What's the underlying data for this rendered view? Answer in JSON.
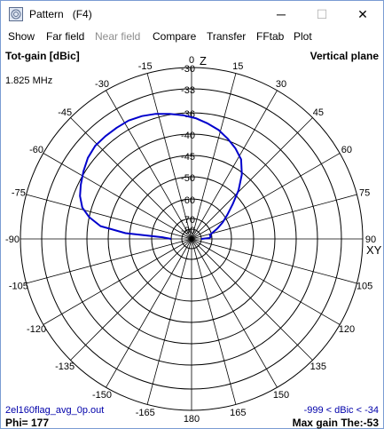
{
  "window": {
    "title": "Pattern   (F4)",
    "minimize_glyph": "─",
    "maximize_glyph": "☐",
    "close_glyph": "✕"
  },
  "menu": [
    {
      "label": "Show",
      "enabled": true
    },
    {
      "label": "Far field",
      "enabled": true
    },
    {
      "label": "Near field",
      "enabled": false
    },
    {
      "label": "Compare",
      "enabled": true
    },
    {
      "label": "Transfer",
      "enabled": true
    },
    {
      "label": "FFtab",
      "enabled": true
    },
    {
      "label": "Plot",
      "enabled": true
    }
  ],
  "plot": {
    "quantity": "Tot-gain [dBic]",
    "plane": "Vertical plane",
    "frequency": "1.825 MHz",
    "file_name": "2el160flag_avg_0p.out",
    "range_note": "-999 < dBic < -34",
    "phi": "Phi= 177",
    "max_gain": "Max gain The:-53",
    "z_axis_label": "Z",
    "xy_axis_label": "XY"
  },
  "chart_data": {
    "type": "polar",
    "angle_labels": [
      "0",
      "15",
      "30",
      "45",
      "60",
      "75",
      "90",
      "105",
      "120",
      "135",
      "150",
      "165",
      "180",
      "-165",
      "-150",
      "-135",
      "-120",
      "-105",
      "-90",
      "-75",
      "-60",
      "-45",
      "-30",
      "-15"
    ],
    "ring_labels": [
      "-30",
      "-33",
      "-36",
      "-40",
      "-45",
      "-50",
      "-60",
      "-70",
      "-80"
    ],
    "series": [
      {
        "color": "#0000cc",
        "points": [
          {
            "angle": -90,
            "gain": -70.0
          },
          {
            "angle": -87,
            "gain": -66.0
          },
          {
            "angle": -85,
            "gain": -49.0
          },
          {
            "angle": -82,
            "gain": -43.0
          },
          {
            "angle": -78,
            "gain": -40.0
          },
          {
            "angle": -74,
            "gain": -38.3
          },
          {
            "angle": -69,
            "gain": -37.2
          },
          {
            "angle": -64,
            "gain": -36.5
          },
          {
            "angle": -58,
            "gain": -35.8
          },
          {
            "angle": -52,
            "gain": -35.3
          },
          {
            "angle": -46,
            "gain": -35.0
          },
          {
            "angle": -40,
            "gain": -35.0
          },
          {
            "angle": -34,
            "gain": -35.0
          },
          {
            "angle": -28,
            "gain": -35.0
          },
          {
            "angle": -22,
            "gain": -35.2
          },
          {
            "angle": -16,
            "gain": -35.5
          },
          {
            "angle": -10,
            "gain": -35.9
          },
          {
            "angle": -4,
            "gain": -36.4
          },
          {
            "angle": 2,
            "gain": -37.0
          },
          {
            "angle": 8,
            "gain": -37.8
          },
          {
            "angle": 14,
            "gain": -38.6
          },
          {
            "angle": 20,
            "gain": -39.7
          },
          {
            "angle": 26,
            "gain": -41.0
          },
          {
            "angle": 32,
            "gain": -42.6
          },
          {
            "angle": 38,
            "gain": -45.4
          },
          {
            "angle": 44,
            "gain": -48.7
          },
          {
            "angle": 50,
            "gain": -53.8
          },
          {
            "angle": 56,
            "gain": -58.5
          },
          {
            "angle": 62,
            "gain": -62.4
          },
          {
            "angle": 68,
            "gain": -66.2
          },
          {
            "angle": 74,
            "gain": -69.5
          },
          {
            "angle": 78,
            "gain": -71.5
          },
          {
            "angle": 81,
            "gain": -71.4
          },
          {
            "angle": 84,
            "gain": -71.0
          },
          {
            "angle": 87,
            "gain": -72.5
          },
          {
            "angle": 90,
            "gain": -80.0
          }
        ]
      }
    ]
  }
}
